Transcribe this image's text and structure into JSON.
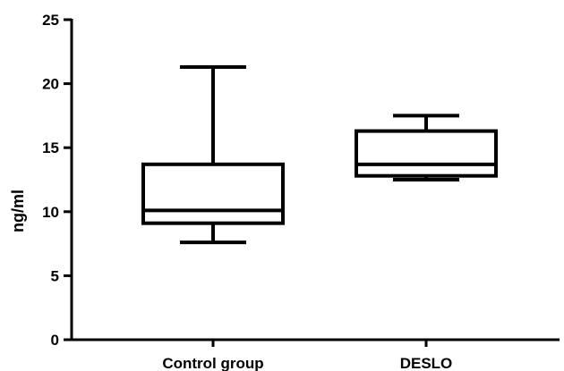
{
  "chart_data": {
    "type": "box",
    "title": "",
    "xlabel": "",
    "ylabel": "ng/ml",
    "ylim": [
      0,
      25
    ],
    "yticks": [
      0,
      5,
      10,
      15,
      20,
      25
    ],
    "grid": false,
    "legend": "none",
    "categories": [
      "Control group",
      "DESLO"
    ],
    "boxes": [
      {
        "category": "Control group",
        "min": 7.6,
        "q1": 9.1,
        "median": 10.1,
        "q3": 13.7,
        "max": 21.3
      },
      {
        "category": "DESLO",
        "min": 12.5,
        "q1": 12.8,
        "median": 13.7,
        "q3": 16.3,
        "max": 17.5
      }
    ],
    "colors": {
      "stroke": "#000000",
      "fill": "#ffffff"
    }
  }
}
